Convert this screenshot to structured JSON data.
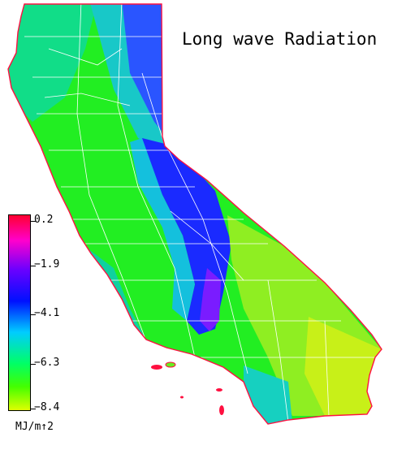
{
  "title": "Long wave Radiation",
  "legend": {
    "ticks": [
      "0.2",
      "−1.9",
      "−4.1",
      "−6.3",
      "−8.4"
    ],
    "unit": "MJ/m↑2",
    "range": [
      -8.4,
      0.2
    ]
  },
  "colors": {
    "ocean": "#ffffff",
    "coast_outline": "#ff1040",
    "boundaries": "#ffffff",
    "low_range": "#ddff00",
    "mid_range": "#00ff66",
    "high_range": "#0010ff"
  }
}
